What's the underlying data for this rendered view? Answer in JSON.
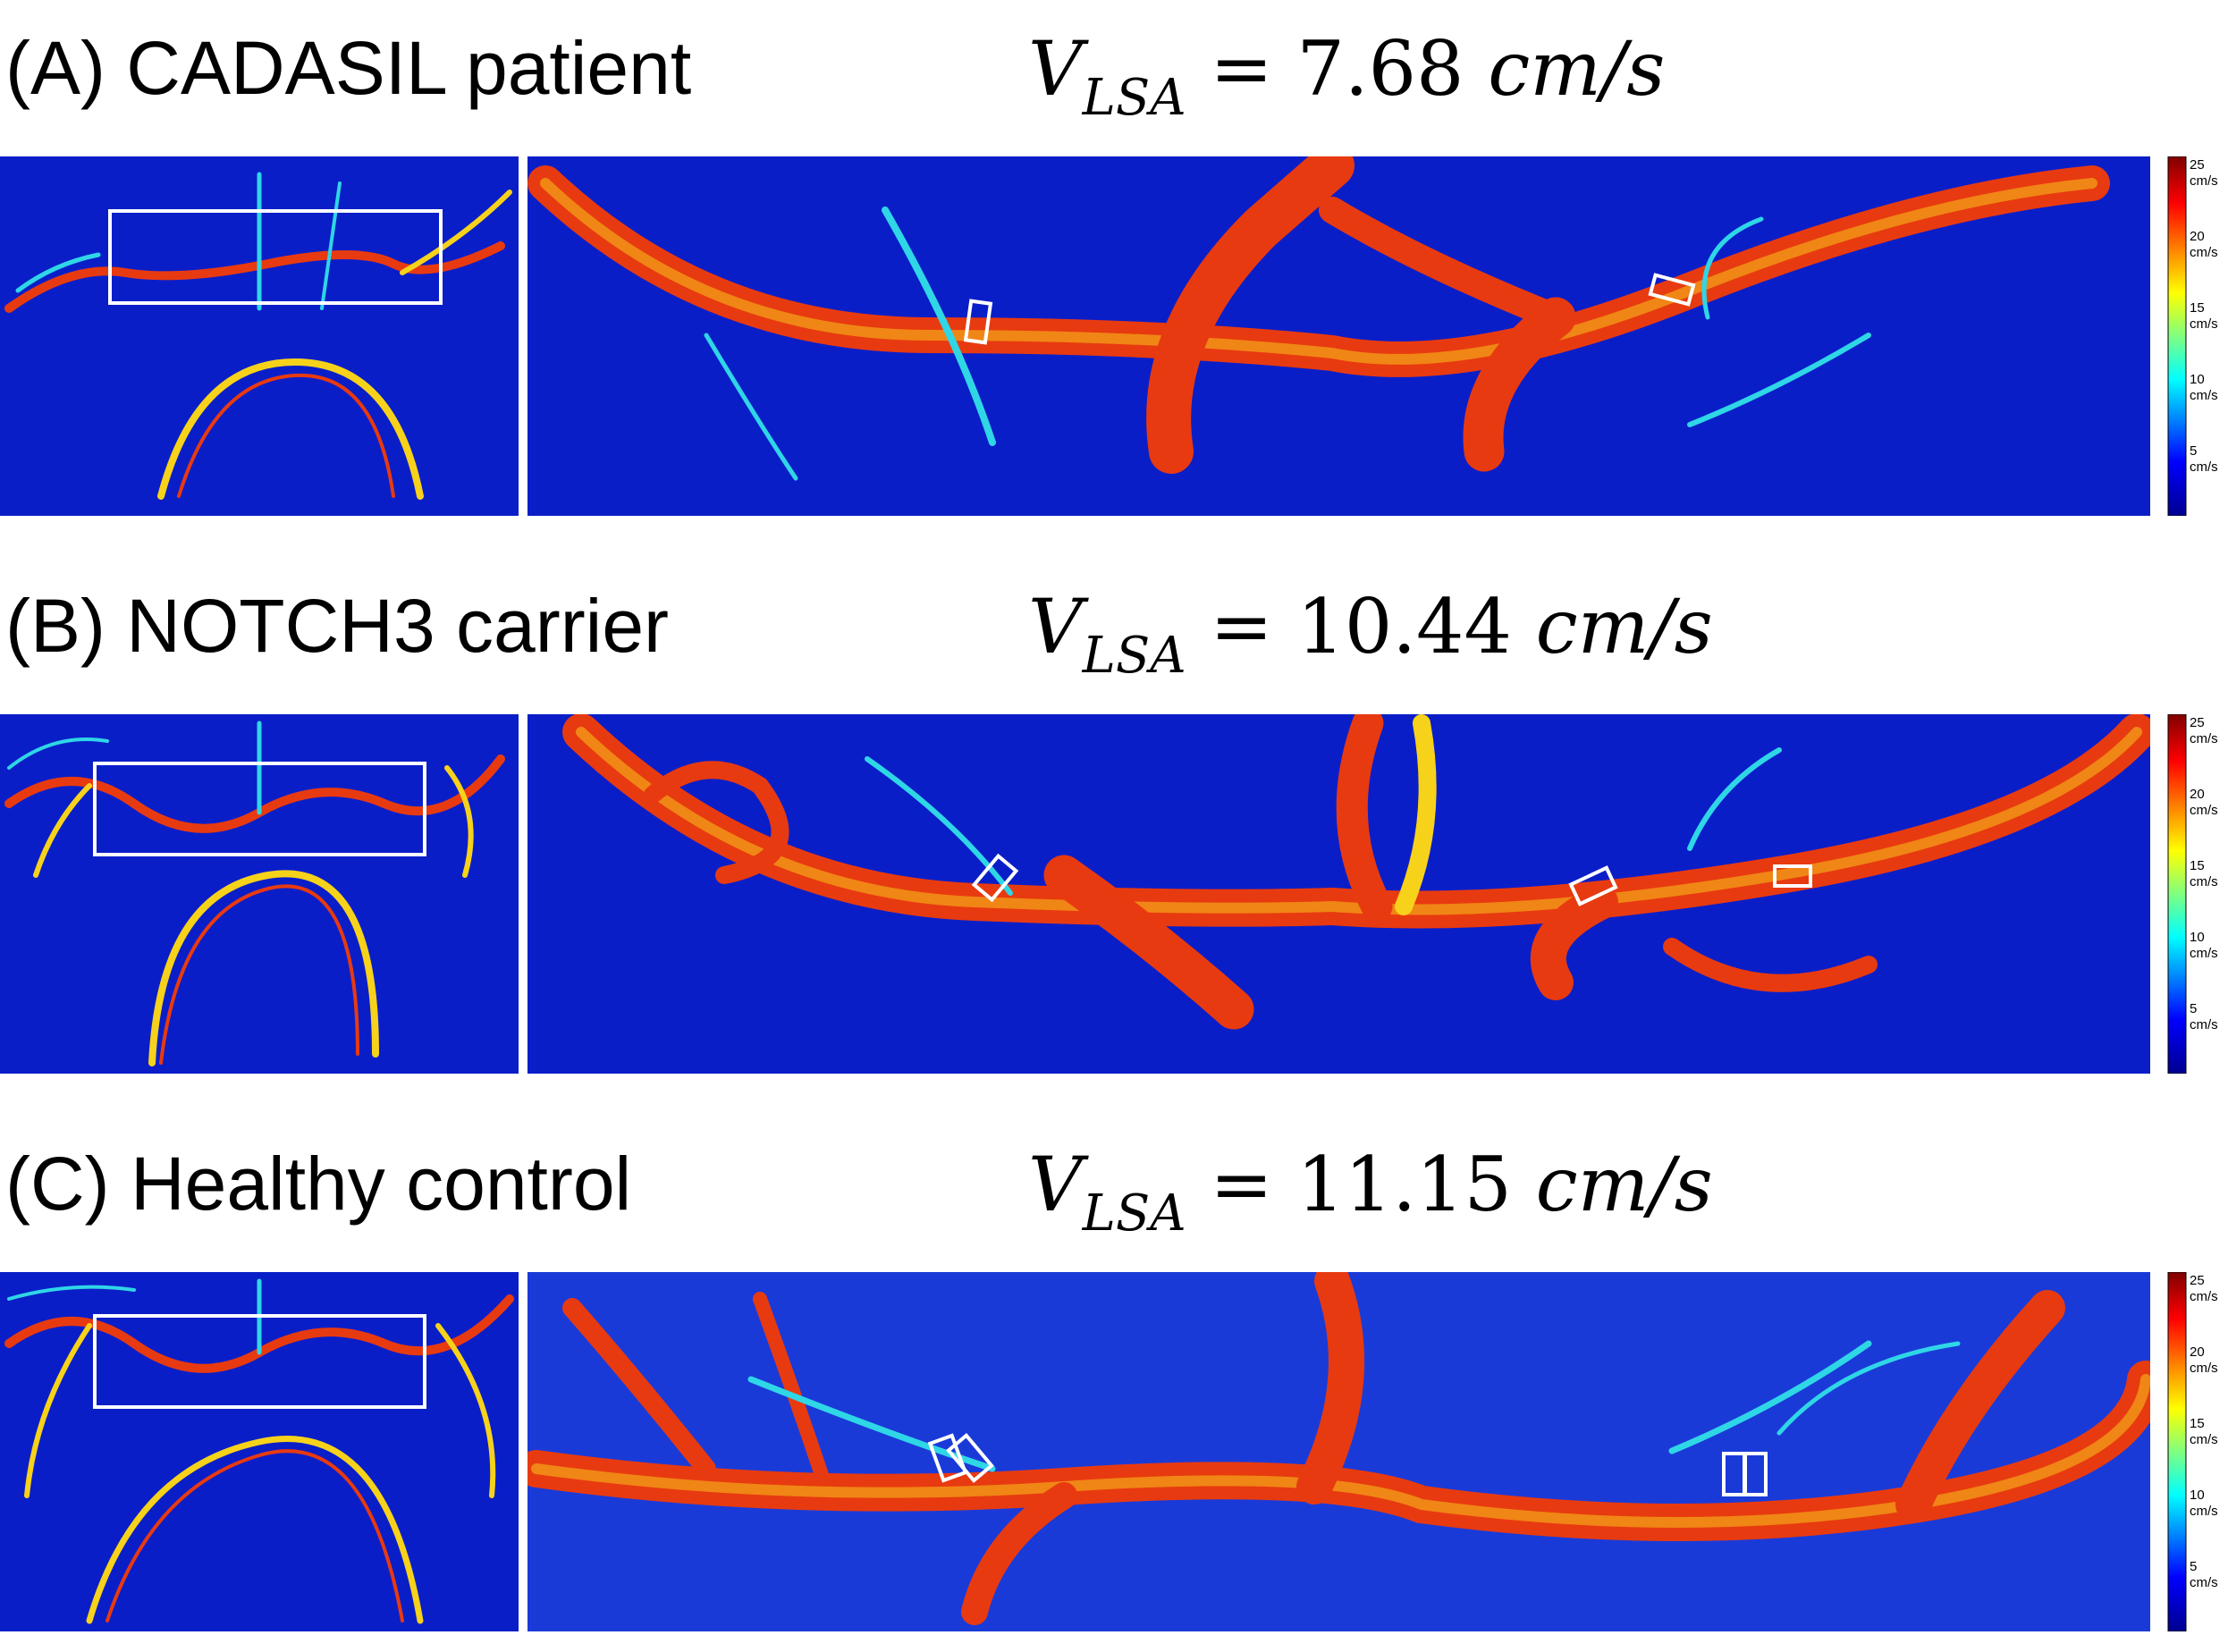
{
  "panels": [
    {
      "label": "(A) CADASIL patient",
      "velocity_symbol": "V",
      "velocity_subscript": "LSA",
      "velocity_equals": "=",
      "velocity_value": "7.68",
      "velocity_unit": "cm/s"
    },
    {
      "label": "(B) NOTCH3 carrier",
      "velocity_symbol": "V",
      "velocity_subscript": "LSA",
      "velocity_equals": "=",
      "velocity_value": "10.44",
      "velocity_unit": "cm/s"
    },
    {
      "label": "(C) Healthy control",
      "velocity_symbol": "V",
      "velocity_subscript": "LSA",
      "velocity_equals": "=",
      "velocity_value": "11.15",
      "velocity_unit": "cm/s"
    }
  ],
  "colorbar": {
    "ticks": [
      {
        "value": "25",
        "unit": "cm/s"
      },
      {
        "value": "20",
        "unit": "cm/s"
      },
      {
        "value": "15",
        "unit": "cm/s"
      },
      {
        "value": "10",
        "unit": "cm/s"
      },
      {
        "value": "5",
        "unit": "cm/s"
      }
    ],
    "colormap": [
      "#00008f",
      "#0000ff",
      "#00ffff",
      "#ffff00",
      "#ff0000",
      "#800000"
    ]
  },
  "colors": {
    "background": "#0a1ec8",
    "vessel_fast": "#e83a10",
    "vessel_mid": "#f7d21a",
    "vessel_slow": "#2fd6e6"
  }
}
